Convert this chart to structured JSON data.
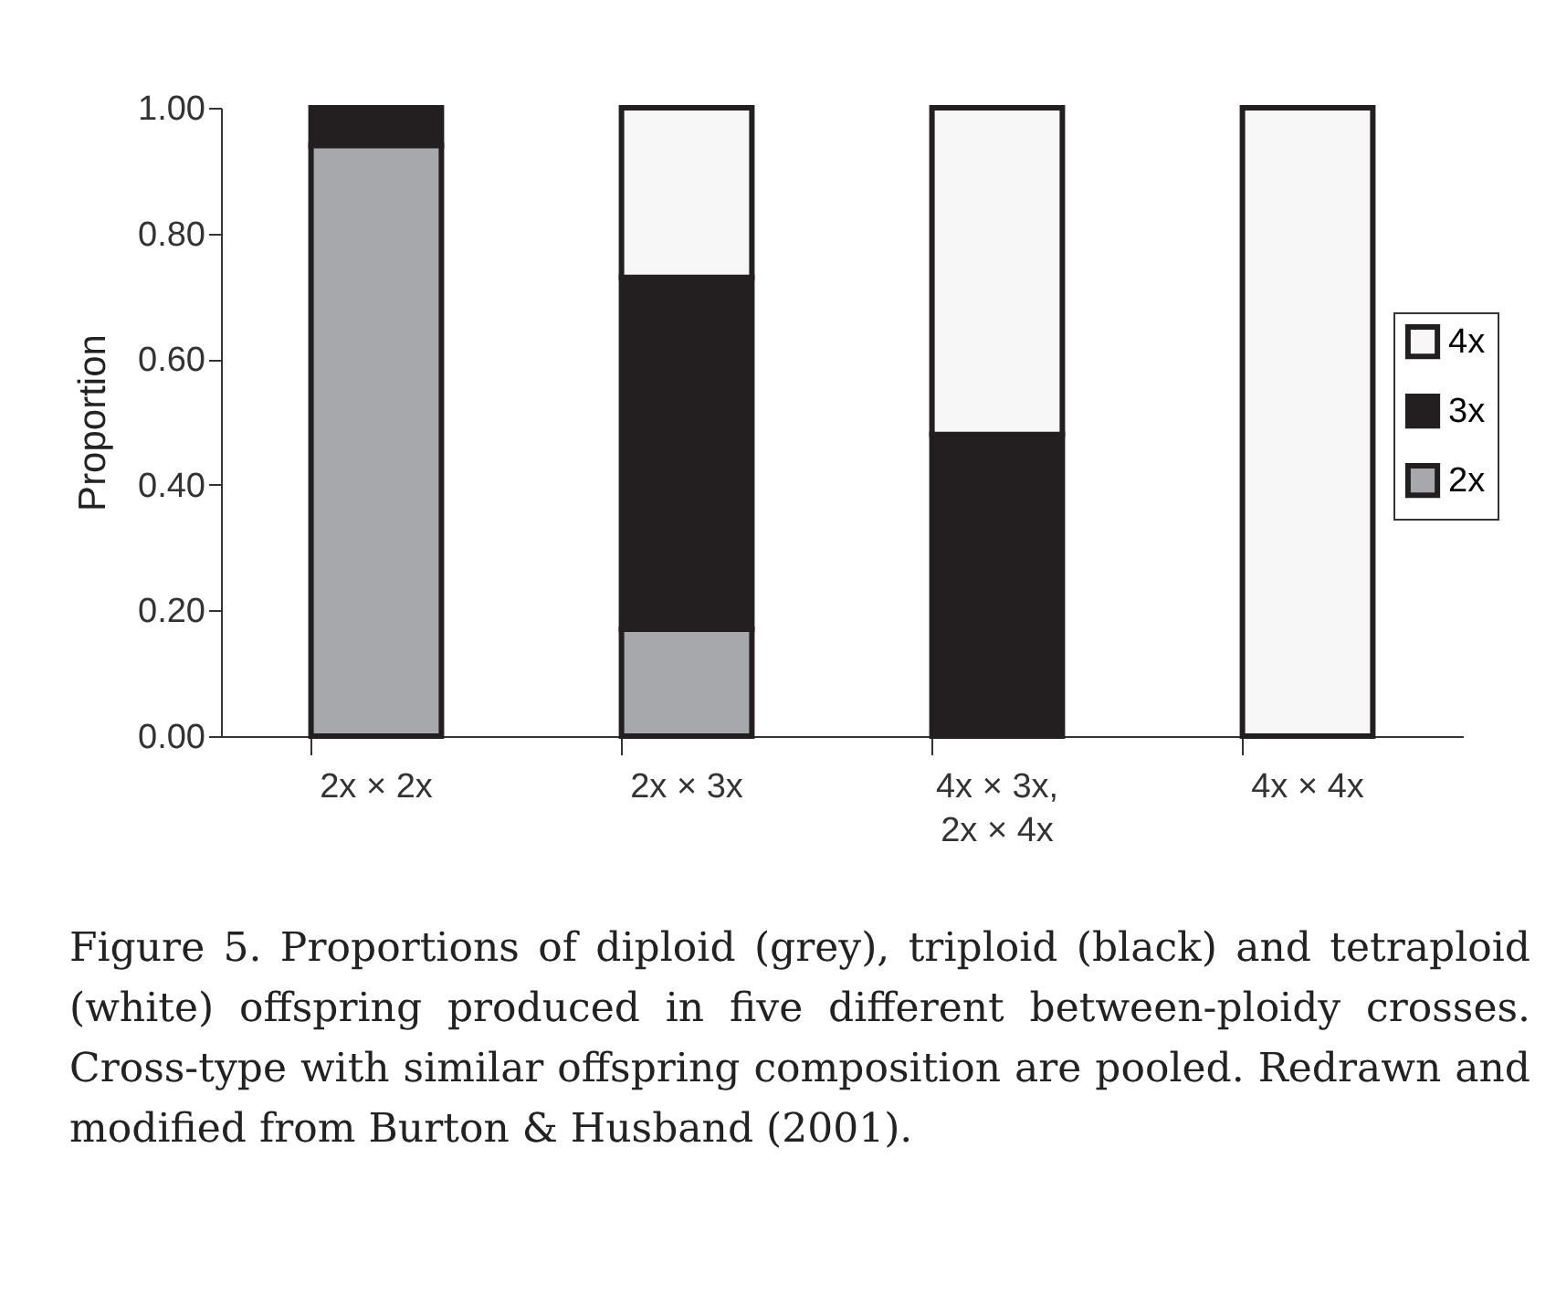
{
  "chart_data": {
    "type": "bar",
    "stacked": true,
    "ylabel": "Proportion",
    "categories": [
      "2x × 2x",
      "2x × 3x",
      "4x × 3x,\n2x × 4x",
      "4x × 4x"
    ],
    "series": [
      {
        "name": "2x",
        "color": "#a7a8ab",
        "values": [
          0.94,
          0.17,
          0,
          0
        ]
      },
      {
        "name": "3x",
        "color": "#231f20",
        "values": [
          0.06,
          0.56,
          0.48,
          0
        ]
      },
      {
        "name": "4x",
        "color": "#f7f7f7",
        "values": [
          0,
          0.27,
          0.52,
          1.0
        ]
      }
    ],
    "ylim": [
      0,
      1.0
    ],
    "yticks": [
      {
        "value": 0,
        "label": "0.00"
      },
      {
        "value": 0.2,
        "label": "0.20"
      },
      {
        "value": 0.4,
        "label": "0.40"
      },
      {
        "value": 0.6,
        "label": "0.60"
      },
      {
        "value": 0.8,
        "label": "0.80"
      },
      {
        "value": 1.0,
        "label": "1.00"
      }
    ],
    "grid": false,
    "legend": "right",
    "annotations": [
      "Figure 5. Proportions of diploid (grey), triploid (black) and tetraploid (white) offspring produced in five different between-ploidy crosses. Cross-type with similar offspring composition are pooled. Redrawn and modified from Burton & Husband (2001)."
    ]
  }
}
